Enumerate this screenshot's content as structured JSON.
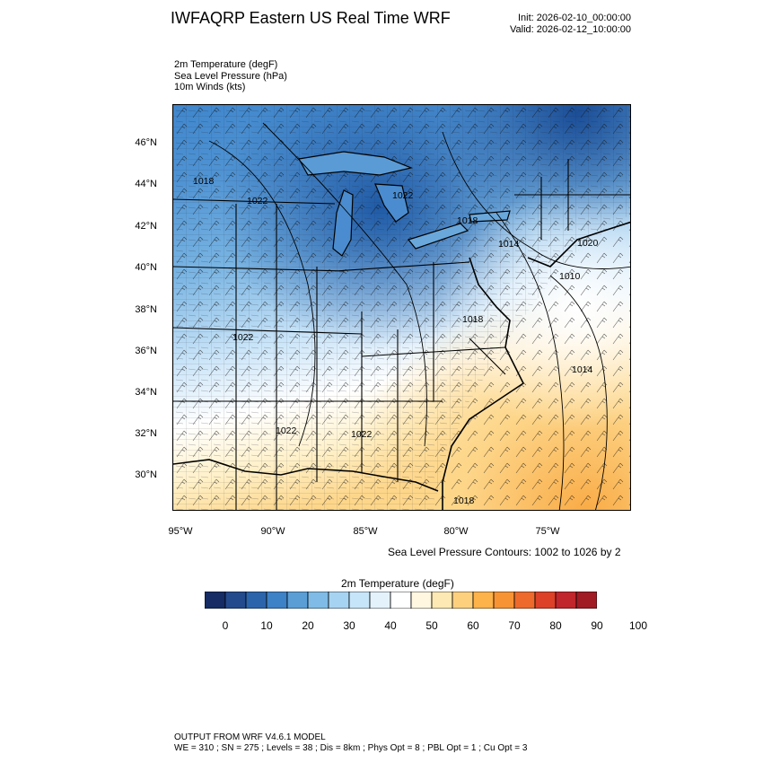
{
  "header": {
    "title": "IWFAQRP Eastern US Real Time WRF",
    "init": "Init: 2026-02-10_00:00:00",
    "valid": "Valid: 2026-02-12_10:00:00"
  },
  "fields": [
    "2m Temperature   (degF)",
    "Sea Level Pressure   (hPa)",
    "10m Winds   (kts)"
  ],
  "map": {
    "lat_labels": [
      "46°N",
      "44°N",
      "42°N",
      "40°N",
      "38°N",
      "36°N",
      "34°N",
      "32°N",
      "30°N"
    ],
    "lon_labels": [
      "95°W",
      "90°W",
      "85°W",
      "80°W",
      "75°W"
    ],
    "slp_labels": [
      "1018",
      "1022",
      "1022",
      "1018",
      "1014",
      "1020",
      "1010",
      "1018",
      "1022",
      "1014",
      "1022",
      "1022",
      "1018"
    ],
    "colors": {
      "cold": "#2f6fb5",
      "mid": "#a7d3f2",
      "neutral": "#ffffff",
      "warm": "#fdb24a"
    }
  },
  "contour_note": "Sea Level Pressure Contours: 1002 to 1026 by 2",
  "colorbar": {
    "title": "2m Temperature   (degF)",
    "labels": [
      "0",
      "10",
      "20",
      "30",
      "40",
      "50",
      "60",
      "70",
      "80",
      "90",
      "100"
    ],
    "colors": [
      "#152c64",
      "#234a8c",
      "#2c64ac",
      "#3d81c6",
      "#5b9ed6",
      "#7fbbe6",
      "#a7d3f2",
      "#c7e5f9",
      "#e4f2fc",
      "#ffffff",
      "#fff7e0",
      "#fde9b3",
      "#fdd07e",
      "#fdb24a",
      "#f79333",
      "#ee6a2c",
      "#dd4128",
      "#c0262b",
      "#a11b24"
    ]
  },
  "footer": {
    "line1": "OUTPUT FROM WRF V4.6.1 MODEL",
    "line2": "WE = 310 ; SN = 275 ; Levels = 38 ; Dis = 8km ; Phys Opt = 8 ; PBL Opt = 1 ; Cu Opt = 3"
  }
}
